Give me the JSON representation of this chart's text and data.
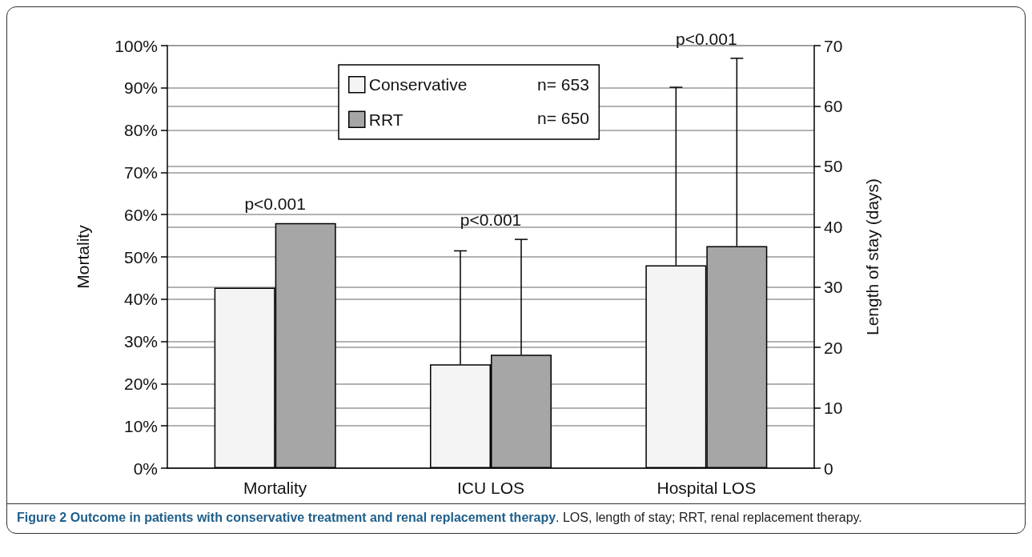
{
  "chart_data": {
    "type": "bar",
    "categories": [
      "Mortality",
      "ICU LOS",
      "Hospital LOS"
    ],
    "ylabel": "Mortality",
    "y2label": "Length of stay (days)",
    "ylim": [
      0,
      100
    ],
    "yticks": [
      {
        "value": 0,
        "label": "0%"
      },
      {
        "value": 10,
        "label": "10%"
      },
      {
        "value": 20,
        "label": "20%"
      },
      {
        "value": 30,
        "label": "30%"
      },
      {
        "value": 40,
        "label": "40%"
      },
      {
        "value": 50,
        "label": "50%"
      },
      {
        "value": 60,
        "label": "60%"
      },
      {
        "value": 70,
        "label": "70%"
      },
      {
        "value": 80,
        "label": "80%"
      },
      {
        "value": 90,
        "label": "90%"
      },
      {
        "value": 100,
        "label": "100%"
      }
    ],
    "y2lim": [
      0,
      70
    ],
    "y2ticks": [
      0,
      10,
      20,
      30,
      40,
      50,
      60,
      70
    ],
    "series": [
      {
        "name": "Conservative",
        "color": "#f4f4f4",
        "values": [
          42.7,
          null,
          null
        ]
      },
      {
        "name": "RRT",
        "color": "#a6a6a6",
        "values": [
          58,
          null,
          null
        ]
      },
      {
        "color": "#f4f4f4",
        "axis": "y2",
        "values": [
          null,
          17.2,
          33.6
        ],
        "errors": [
          null,
          [
            17.2,
            36
          ],
          [
            33.6,
            63.1
          ]
        ]
      },
      {
        "color": "#a6a6a6",
        "axis": "y2",
        "values": [
          null,
          18.8,
          36.8
        ],
        "errors": [
          null,
          [
            18.8,
            37.9
          ],
          [
            36.8,
            67.9
          ]
        ]
      }
    ],
    "annotations": [
      "n= 653",
      "n= 650",
      "p<0.001",
      "p<0.001",
      "p<0.001",
      "Figure 2 Outcome in patients with conservative treatment and renal replacement therapy. LOS, length of stay; RRT, renal replacement therapy."
    ],
    "grid": true,
    "legend": "top"
  }
}
